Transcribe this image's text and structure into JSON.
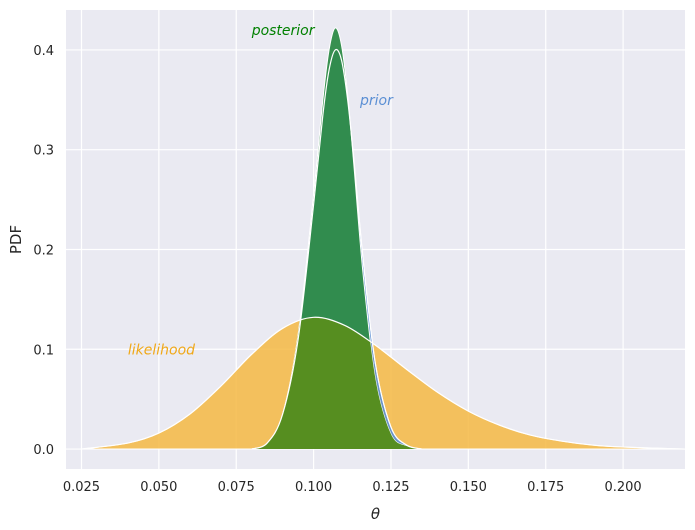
{
  "chart_data": {
    "type": "area",
    "title": "",
    "xlabel": "θ",
    "ylabel": "PDF",
    "xlim": [
      0.02,
      0.22
    ],
    "ylim": [
      -0.02,
      0.44
    ],
    "xticks": [
      0.025,
      0.05,
      0.075,
      0.1,
      0.125,
      0.15,
      0.175,
      0.2
    ],
    "xtick_labels": [
      "0.025",
      "0.050",
      "0.075",
      "0.100",
      "0.125",
      "0.150",
      "0.175",
      "0.200"
    ],
    "yticks": [
      0.0,
      0.1,
      0.2,
      0.3,
      0.4
    ],
    "ytick_labels": [
      "0.0",
      "0.1",
      "0.2",
      "0.3",
      "0.4"
    ],
    "grid": true,
    "background": "#eaeaf2",
    "series": [
      {
        "name": "likelihood",
        "color": "#f5b843",
        "x": [
          0.025,
          0.04,
          0.05,
          0.06,
          0.07,
          0.08,
          0.09,
          0.1,
          0.11,
          0.12,
          0.13,
          0.14,
          0.15,
          0.16,
          0.17,
          0.18,
          0.19,
          0.2,
          0.22
        ],
        "values": [
          0.0,
          0.006,
          0.016,
          0.035,
          0.063,
          0.095,
          0.121,
          0.132,
          0.124,
          0.104,
          0.08,
          0.057,
          0.038,
          0.024,
          0.014,
          0.008,
          0.004,
          0.002,
          0.0
        ]
      },
      {
        "name": "prior",
        "color": "#5b8fd4",
        "x": [
          0.08,
          0.085,
          0.09,
          0.095,
          0.1,
          0.103,
          0.105,
          0.107,
          0.109,
          0.111,
          0.113,
          0.116,
          0.12,
          0.125,
          0.13,
          0.135
        ],
        "values": [
          0.0,
          0.006,
          0.035,
          0.11,
          0.245,
          0.335,
          0.38,
          0.4,
          0.39,
          0.35,
          0.29,
          0.19,
          0.085,
          0.022,
          0.004,
          0.0
        ]
      },
      {
        "name": "posterior",
        "color": "#2e8b47",
        "x": [
          0.08,
          0.085,
          0.09,
          0.095,
          0.1,
          0.103,
          0.105,
          0.107,
          0.109,
          0.111,
          0.113,
          0.116,
          0.12,
          0.125,
          0.13,
          0.135
        ],
        "values": [
          0.0,
          0.006,
          0.035,
          0.115,
          0.255,
          0.35,
          0.4,
          0.422,
          0.405,
          0.355,
          0.285,
          0.175,
          0.07,
          0.015,
          0.003,
          0.0
        ]
      }
    ],
    "overlap_color": "#568e20",
    "annotations": [
      {
        "text": "posterior",
        "x": 0.08,
        "y": 0.42,
        "color": "#008000"
      },
      {
        "text": "prior",
        "x": 0.115,
        "y": 0.35,
        "color": "#5b8fd4"
      },
      {
        "text": "likelihood",
        "x": 0.04,
        "y": 0.1,
        "color": "#f0a818"
      }
    ]
  }
}
